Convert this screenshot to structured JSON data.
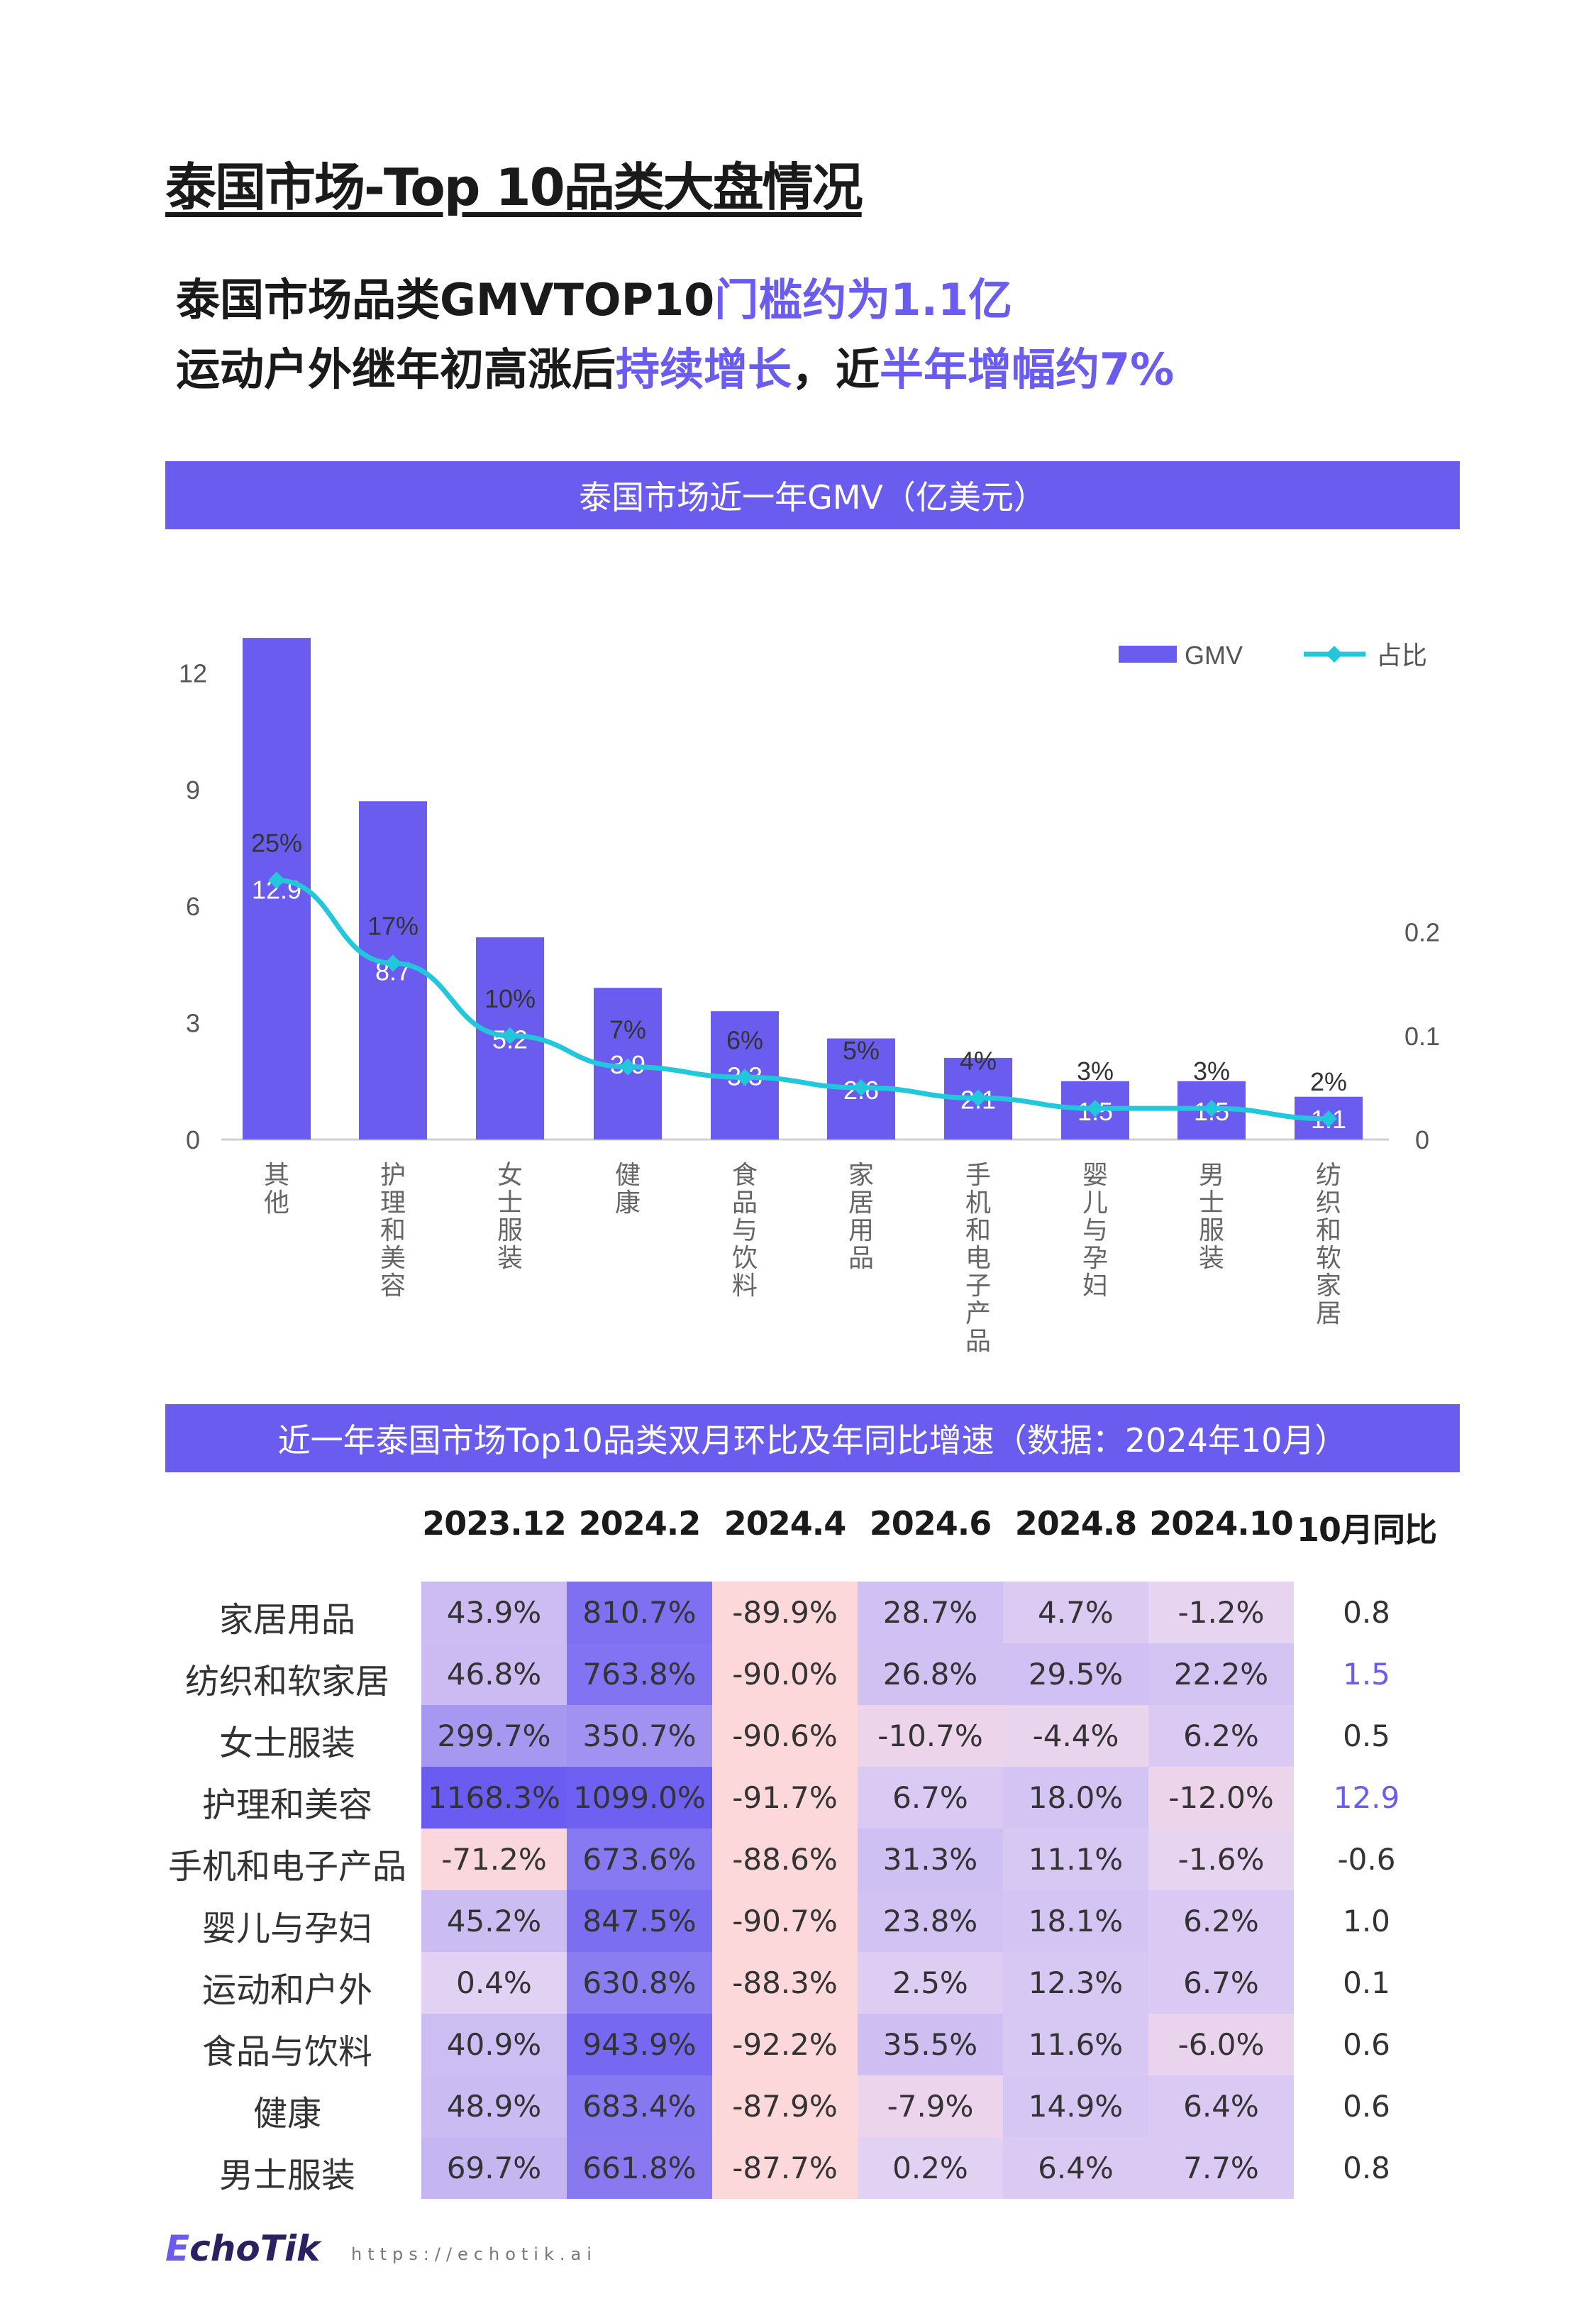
{
  "page": {
    "title": "泰国市场-Top 10品类大盘情况",
    "subtitle_line1": {
      "normal": "泰国市场品类GMVTOP10",
      "highlight": "门槛约为1.1亿"
    },
    "subtitle_line2": {
      "normal1": "运动户外继年初高涨后",
      "highlight1": "持续增长",
      "normal2": "，近",
      "highlight2": "半年增幅约7%"
    },
    "accent_color": "#6b5cf0"
  },
  "chart_data": {
    "type": "bar+line",
    "title": "泰国市场近一年GMV（亿美元）",
    "categories": [
      "其他",
      "护理和美容",
      "女士服装",
      "健康",
      "食品与饮料",
      "家居用品",
      "手机和电子产品",
      "婴儿与孕妇",
      "男士服装",
      "纺织和软家居"
    ],
    "series": [
      {
        "name": "GMV",
        "type": "bar",
        "axis": "left",
        "color": "#6b5cf0",
        "values": [
          12.9,
          8.7,
          5.2,
          3.9,
          3.3,
          2.6,
          2.1,
          1.5,
          1.5,
          1.1
        ]
      },
      {
        "name": "占比",
        "type": "line",
        "axis": "right",
        "color": "#22c7dc",
        "values": [
          0.25,
          0.17,
          0.1,
          0.07,
          0.06,
          0.05,
          0.04,
          0.03,
          0.03,
          0.02
        ],
        "labels": [
          "25%",
          "17%",
          "10%",
          "7%",
          "6%",
          "5%",
          "4%",
          "3%",
          "3%",
          "2%"
        ]
      }
    ],
    "y_left": {
      "ticks": [
        0,
        3,
        6,
        9,
        12
      ],
      "range": [
        0,
        12.9
      ]
    },
    "y_right": {
      "ticks": [
        0,
        0.1,
        0.2
      ],
      "range": [
        0,
        0.25
      ]
    },
    "legend": "top-right",
    "grid": false
  },
  "table": {
    "title": "近一年泰国市场Top10品类双月环比及年同比增速（数据：2024年10月）",
    "columns": [
      "2023.12",
      "2024.2",
      "2024.4",
      "2024.6",
      "2024.8",
      "2024.10",
      "10月同比"
    ],
    "rows": [
      {
        "label": "家居用品",
        "values": [
          "43.9%",
          "810.7%",
          "-89.9%",
          "28.7%",
          "4.7%",
          "-1.2%"
        ],
        "yoy": "0.8",
        "yoy_color": "#333333"
      },
      {
        "label": "纺织和软家居",
        "values": [
          "46.8%",
          "763.8%",
          "-90.0%",
          "26.8%",
          "29.5%",
          "22.2%"
        ],
        "yoy": "1.5",
        "yoy_color": "#6b5cf0"
      },
      {
        "label": "女士服装",
        "values": [
          "299.7%",
          "350.7%",
          "-90.6%",
          "-10.7%",
          "-4.4%",
          "6.2%"
        ],
        "yoy": "0.5",
        "yoy_color": "#333333"
      },
      {
        "label": "护理和美容",
        "values": [
          "1168.3%",
          "1099.0%",
          "-91.7%",
          "6.7%",
          "18.0%",
          "-12.0%"
        ],
        "yoy": "12.9",
        "yoy_color": "#6b5cf0"
      },
      {
        "label": "手机和电子产品",
        "values": [
          "-71.2%",
          "673.6%",
          "-88.6%",
          "31.3%",
          "11.1%",
          "-1.6%"
        ],
        "yoy": "-0.6",
        "yoy_color": "#333333"
      },
      {
        "label": "婴儿与孕妇",
        "values": [
          "45.2%",
          "847.5%",
          "-90.7%",
          "23.8%",
          "18.1%",
          "6.2%"
        ],
        "yoy": "1.0",
        "yoy_color": "#333333"
      },
      {
        "label": "运动和户外",
        "values": [
          "0.4%",
          "630.8%",
          "-88.3%",
          "2.5%",
          "12.3%",
          "6.7%"
        ],
        "yoy": "0.1",
        "yoy_color": "#333333"
      },
      {
        "label": "食品与饮料",
        "values": [
          "40.9%",
          "943.9%",
          "-92.2%",
          "35.5%",
          "11.6%",
          "-6.0%"
        ],
        "yoy": "0.6",
        "yoy_color": "#333333"
      },
      {
        "label": "健康",
        "values": [
          "48.9%",
          "683.4%",
          "-87.9%",
          "-7.9%",
          "14.9%",
          "6.4%"
        ],
        "yoy": "0.6",
        "yoy_color": "#333333"
      },
      {
        "label": "男士服装",
        "values": [
          "69.7%",
          "661.8%",
          "-87.7%",
          "0.2%",
          "6.4%",
          "7.7%"
        ],
        "yoy": "0.8",
        "yoy_color": "#333333"
      }
    ],
    "heat_colors": {
      "high": "#6a5cf0",
      "zero": "#e3d3f3",
      "negative": "#fdd8da"
    }
  },
  "footer": {
    "logo": "EchoTik",
    "url": "https://echotik.ai"
  }
}
